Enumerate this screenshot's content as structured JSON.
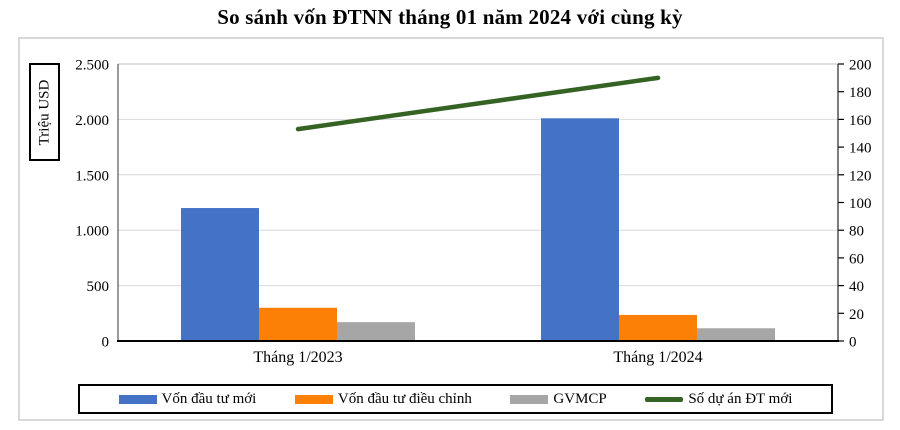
{
  "title": "So sánh vốn ĐTNN tháng 01 năm 2024 với cùng kỳ",
  "chart_data": {
    "type": "combo-bar-line",
    "categories": [
      "Tháng 1/2023",
      "Tháng 1/2024"
    ],
    "series": [
      {
        "name": "Vốn đầu tư mới",
        "type": "bar",
        "axis": "left",
        "color": "#4472C4",
        "values": [
          1200,
          2010
        ]
      },
      {
        "name": "Vốn đầu tư điều chỉnh",
        "type": "bar",
        "axis": "left",
        "color": "#FB8005",
        "values": [
          300,
          235
        ]
      },
      {
        "name": "GVMCP",
        "type": "bar",
        "axis": "left",
        "color": "#A6A6A6",
        "values": [
          170,
          115
        ]
      },
      {
        "name": "Số dự án ĐT mới",
        "type": "line",
        "axis": "right",
        "color": "#356324",
        "values": [
          153,
          190
        ]
      }
    ],
    "left_axis": {
      "title": "Triệu USD",
      "min": 0,
      "max": 2500,
      "step": 500,
      "tick_labels": [
        "0",
        "500",
        "1.000",
        "1.500",
        "2.000",
        "2.500"
      ]
    },
    "right_axis": {
      "min": 0,
      "max": 200,
      "step": 20,
      "tick_labels": [
        "0",
        "20",
        "40",
        "60",
        "80",
        "100",
        "120",
        "140",
        "160",
        "180",
        "200"
      ]
    },
    "grid": true,
    "legend_position": "bottom"
  }
}
